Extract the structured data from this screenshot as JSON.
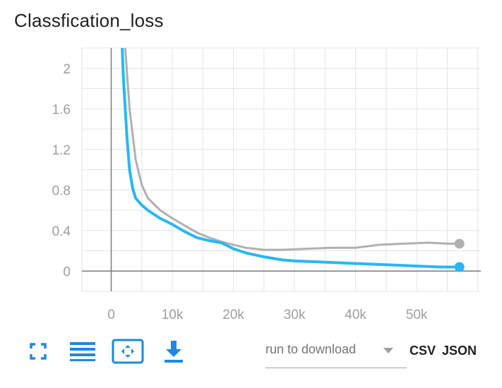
{
  "title": "Classfication_loss",
  "chart_data": {
    "type": "line",
    "title": "Classfication_loss",
    "xlabel": "",
    "ylabel": "",
    "xlim": [
      -4800,
      60500
    ],
    "ylim": [
      -0.2,
      2.2
    ],
    "x_ticks": [
      0,
      10000,
      20000,
      30000,
      40000,
      50000
    ],
    "x_tick_labels": [
      "0",
      "10k",
      "20k",
      "30k",
      "40k",
      "50k"
    ],
    "y_ticks": [
      0,
      0.4,
      0.8,
      1.2,
      1.6,
      2
    ],
    "y_tick_labels": [
      "0",
      "0.4",
      "0.8",
      "1.2",
      "1.6",
      "2"
    ],
    "grid": true,
    "series": [
      {
        "color": "#b0b0b0",
        "x": [
          2300,
          3000,
          4000,
          5000,
          6000,
          8000,
          10000,
          12000,
          14000,
          16000,
          18000,
          20000,
          22000,
          25000,
          28000,
          32000,
          36000,
          40000,
          44000,
          48000,
          52000,
          55000,
          57000
        ],
        "y": [
          2.2,
          1.6,
          1.1,
          0.85,
          0.72,
          0.6,
          0.52,
          0.45,
          0.38,
          0.33,
          0.29,
          0.26,
          0.23,
          0.21,
          0.21,
          0.22,
          0.23,
          0.23,
          0.26,
          0.27,
          0.28,
          0.27,
          0.27
        ]
      },
      {
        "color": "#29b6f6",
        "x": [
          1800,
          2000,
          2300,
          2600,
          3000,
          3500,
          4000,
          5000,
          6000,
          7000,
          8000,
          10000,
          12000,
          14000,
          16000,
          18000,
          20000,
          22000,
          25000,
          28000,
          30000,
          34000,
          38000,
          42000,
          46000,
          50000,
          54000,
          57000
        ],
        "y": [
          2.2,
          1.9,
          1.6,
          1.3,
          1.0,
          0.82,
          0.72,
          0.65,
          0.6,
          0.56,
          0.52,
          0.46,
          0.39,
          0.33,
          0.3,
          0.28,
          0.22,
          0.18,
          0.14,
          0.11,
          0.1,
          0.09,
          0.08,
          0.07,
          0.06,
          0.05,
          0.04,
          0.04
        ]
      }
    ]
  },
  "toolbar": {
    "expand_icon": "fullscreen-icon",
    "log_scale_icon": "list-lines-icon",
    "fit_domain_icon": "fit-domain-icon",
    "download_icon": "download-icon",
    "select_placeholder": "run to download",
    "csv_label": "CSV",
    "json_label": "JSON",
    "accent": "#1e88e5"
  }
}
